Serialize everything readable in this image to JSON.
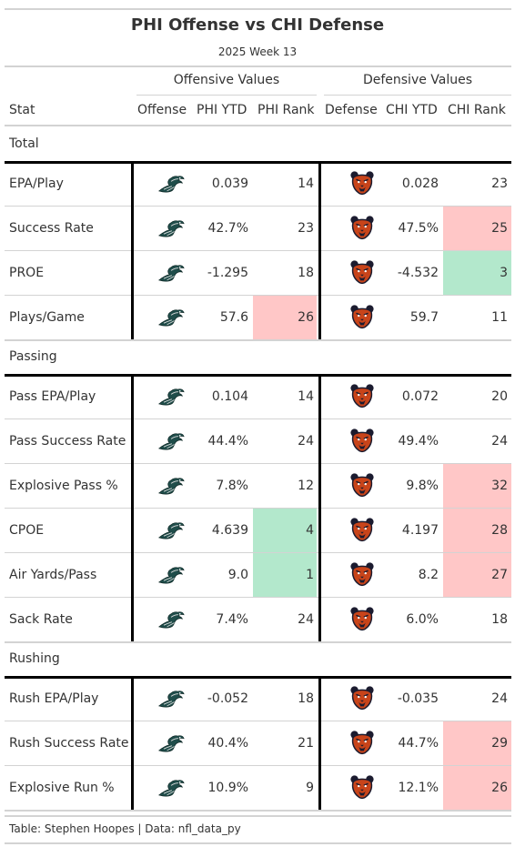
{
  "chart_data": {
    "type": "table",
    "title": "PHI Offense vs CHI Defense",
    "subtitle": "2025 Week 13",
    "spanners": {
      "offense": "Offensive Values",
      "defense": "Defensive Values"
    },
    "columns": [
      "Stat",
      "Offense",
      "PHI YTD",
      "PHI Rank",
      "Defense",
      "CHI YTD",
      "CHI Rank"
    ],
    "offense_logo": "eagles-logo",
    "defense_logo": "bears-logo",
    "colors": {
      "bad": "#ffc7c7",
      "good": "#b3e8cc",
      "rule": "#d3d3d3",
      "thick": "#000000"
    },
    "groups": [
      {
        "name": "Total",
        "rows": [
          {
            "stat": "EPA/Play",
            "phi_ytd": "0.039",
            "phi_rank": 14,
            "chi_ytd": "0.028",
            "chi_rank": 23,
            "phi_flag": "",
            "chi_flag": ""
          },
          {
            "stat": "Success Rate",
            "phi_ytd": "42.7%",
            "phi_rank": 23,
            "chi_ytd": "47.5%",
            "chi_rank": 25,
            "phi_flag": "",
            "chi_flag": "bad"
          },
          {
            "stat": "PROE",
            "phi_ytd": "-1.295",
            "phi_rank": 18,
            "chi_ytd": "-4.532",
            "chi_rank": 3,
            "phi_flag": "",
            "chi_flag": "good"
          },
          {
            "stat": "Plays/Game",
            "phi_ytd": "57.6",
            "phi_rank": 26,
            "chi_ytd": "59.7",
            "chi_rank": 11,
            "phi_flag": "bad",
            "chi_flag": ""
          }
        ]
      },
      {
        "name": "Passing",
        "rows": [
          {
            "stat": "Pass EPA/Play",
            "phi_ytd": "0.104",
            "phi_rank": 14,
            "chi_ytd": "0.072",
            "chi_rank": 20,
            "phi_flag": "",
            "chi_flag": ""
          },
          {
            "stat": "Pass Success Rate",
            "phi_ytd": "44.4%",
            "phi_rank": 24,
            "chi_ytd": "49.4%",
            "chi_rank": 24,
            "phi_flag": "",
            "chi_flag": ""
          },
          {
            "stat": "Explosive Pass %",
            "phi_ytd": "7.8%",
            "phi_rank": 12,
            "chi_ytd": "9.8%",
            "chi_rank": 32,
            "phi_flag": "",
            "chi_flag": "bad"
          },
          {
            "stat": "CPOE",
            "phi_ytd": "4.639",
            "phi_rank": 4,
            "chi_ytd": "4.197",
            "chi_rank": 28,
            "phi_flag": "good",
            "chi_flag": "bad"
          },
          {
            "stat": "Air Yards/Pass",
            "phi_ytd": "9.0",
            "phi_rank": 1,
            "chi_ytd": "8.2",
            "chi_rank": 27,
            "phi_flag": "good",
            "chi_flag": "bad"
          },
          {
            "stat": "Sack Rate",
            "phi_ytd": "7.4%",
            "phi_rank": 24,
            "chi_ytd": "6.0%",
            "chi_rank": 18,
            "phi_flag": "",
            "chi_flag": ""
          }
        ]
      },
      {
        "name": "Rushing",
        "rows": [
          {
            "stat": "Rush EPA/Play",
            "phi_ytd": "-0.052",
            "phi_rank": 18,
            "chi_ytd": "-0.035",
            "chi_rank": 24,
            "phi_flag": "",
            "chi_flag": ""
          },
          {
            "stat": "Rush Success Rate",
            "phi_ytd": "40.4%",
            "phi_rank": 21,
            "chi_ytd": "44.7%",
            "chi_rank": 29,
            "phi_flag": "",
            "chi_flag": "bad"
          },
          {
            "stat": "Explosive Run %",
            "phi_ytd": "10.9%",
            "phi_rank": 9,
            "chi_ytd": "12.1%",
            "chi_rank": 26,
            "phi_flag": "",
            "chi_flag": "bad"
          }
        ]
      }
    ]
  },
  "footer": "Table: Stephen Hoopes | Data: nfl_data_py"
}
